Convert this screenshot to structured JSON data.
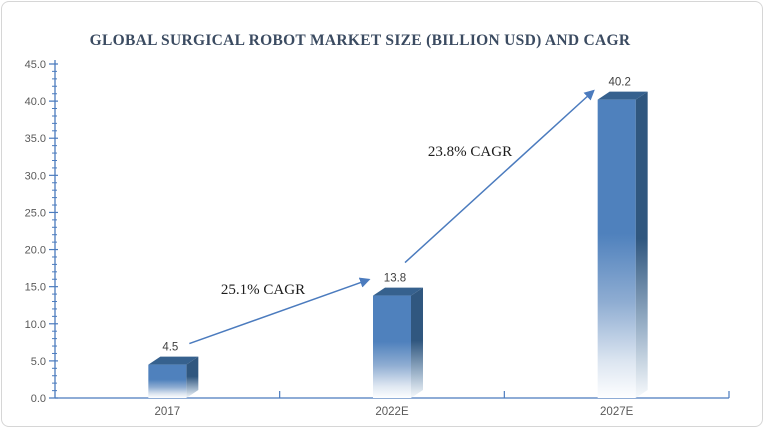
{
  "window": {
    "background_color": "#ffffff",
    "frame_border_color": "#d6d6d6"
  },
  "chart_data": {
    "type": "bar",
    "title": "GLOBAL SURGICAL ROBOT MARKET SIZE (BILLION USD) AND CAGR",
    "categories": [
      "2017",
      "2022E",
      "2027E"
    ],
    "values": [
      4.5,
      13.8,
      40.2
    ],
    "data_labels": [
      "4.5",
      "13.8",
      "40.2"
    ],
    "xlabel": "",
    "ylabel": "",
    "ylim": [
      0,
      45
    ],
    "y_major_step": 5,
    "y_minor_step": 1,
    "y_tick_labels": [
      "0.0",
      "5.0",
      "10.0",
      "15.0",
      "20.0",
      "25.0",
      "30.0",
      "35.0",
      "40.0",
      "45.0"
    ],
    "grid": "off",
    "legend": "none",
    "bar_style": "3d-prism-gradient-fade-to-white",
    "annotations": [
      {
        "label": "25.1% CAGR",
        "from": "2017",
        "to": "2022E"
      },
      {
        "label": "23.8% CAGR",
        "from": "2022E",
        "to": "2027E"
      }
    ],
    "colors": {
      "bar_front": "#4f81bd",
      "bar_front_fade": "#fdfeff",
      "bar_side": "#30577f",
      "bar_top": "#36618e",
      "axis": "#4b7bbe",
      "arrow": "#4b7bbe",
      "title_text": "#3b4b61",
      "tick_text": "#595959",
      "data_label_text": "#404040",
      "annotation_text": "#1c1c1c"
    }
  }
}
